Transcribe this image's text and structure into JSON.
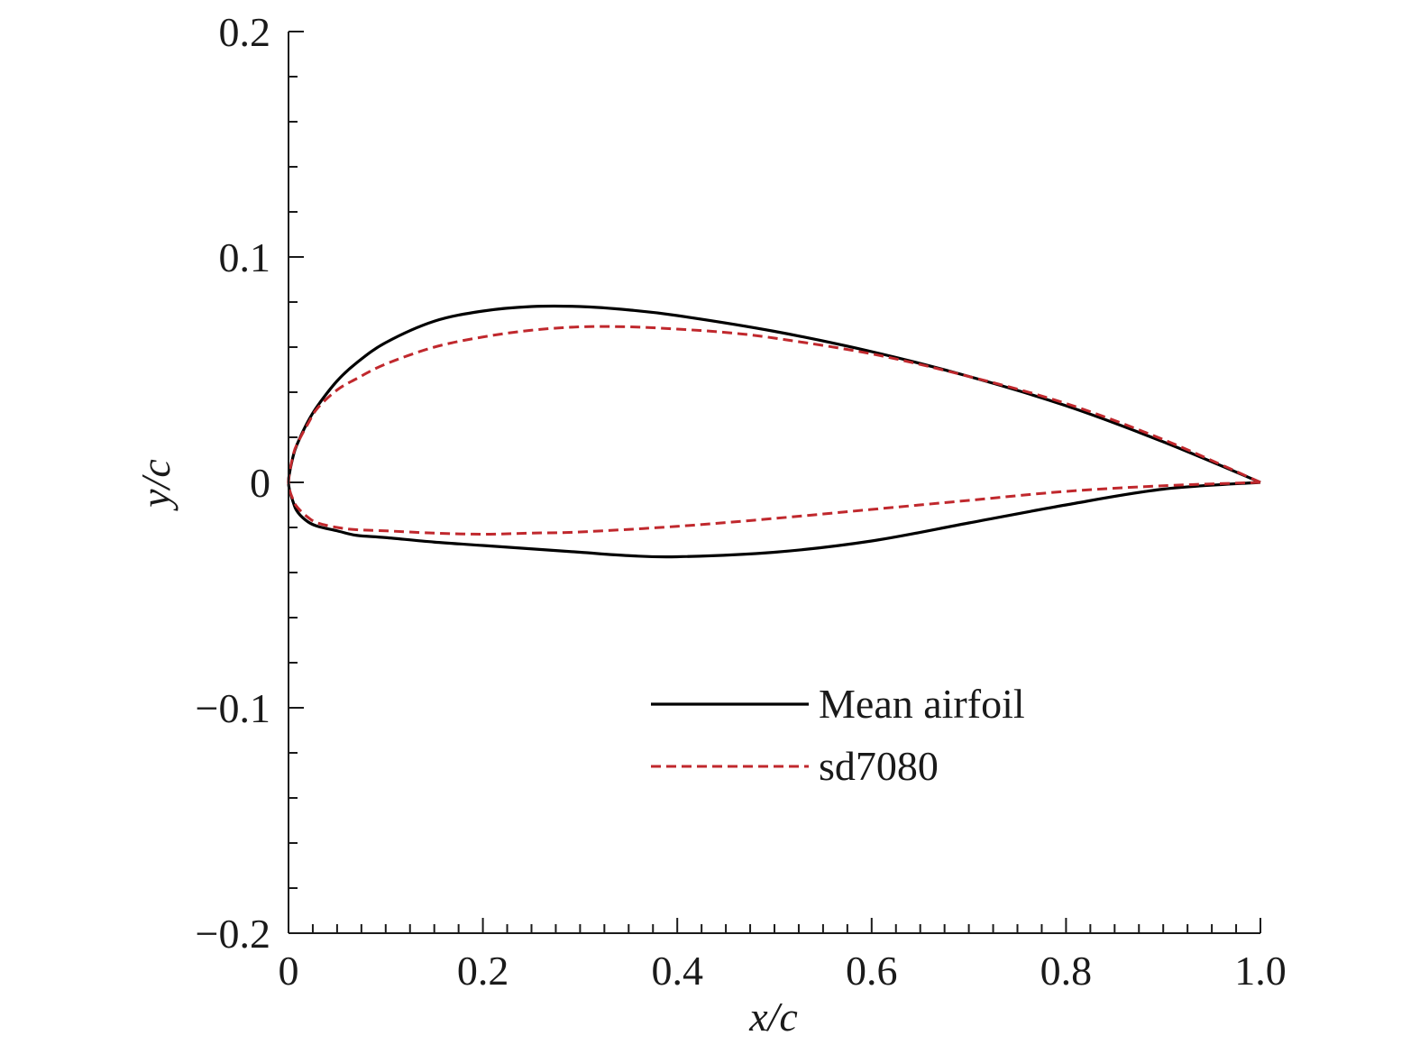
{
  "chart_data": {
    "type": "line",
    "title": "",
    "xlabel": "x/c",
    "ylabel": "y/c",
    "xlim": [
      0,
      1.0
    ],
    "ylim": [
      -0.2,
      0.2
    ],
    "grid": false,
    "legend_position": "lower-right",
    "x_ticks": [
      {
        "value": 0,
        "label": "0"
      },
      {
        "value": 0.2,
        "label": "0.2"
      },
      {
        "value": 0.4,
        "label": "0.4"
      },
      {
        "value": 0.6,
        "label": "0.6"
      },
      {
        "value": 0.8,
        "label": "0.8"
      },
      {
        "value": 1.0,
        "label": "1.0"
      }
    ],
    "y_ticks": [
      {
        "value": 0.2,
        "label": "0.2"
      },
      {
        "value": 0.1,
        "label": "0.1"
      },
      {
        "value": 0,
        "label": "0"
      },
      {
        "value": -0.1,
        "label": "−0.1"
      },
      {
        "value": -0.2,
        "label": "−0.2"
      }
    ],
    "series": [
      {
        "name": "Mean airfoil",
        "color": "#000000",
        "style": "solid",
        "x": [
          1.0,
          0.9,
          0.8,
          0.7,
          0.6,
          0.5,
          0.4,
          0.35,
          0.3,
          0.25,
          0.2,
          0.15,
          0.1,
          0.07,
          0.05,
          0.03,
          0.02,
          0.01,
          0.005,
          0,
          0.005,
          0.01,
          0.02,
          0.03,
          0.05,
          0.07,
          0.1,
          0.15,
          0.2,
          0.25,
          0.3,
          0.35,
          0.4,
          0.5,
          0.6,
          0.7,
          0.8,
          0.9,
          1.0
        ],
        "y": [
          0,
          0.018,
          0.034,
          0.047,
          0.058,
          0.067,
          0.074,
          0.0765,
          0.078,
          0.078,
          0.076,
          0.0715,
          0.062,
          0.053,
          0.045,
          0.034,
          0.027,
          0.018,
          0.012,
          0,
          -0.009,
          -0.0135,
          -0.0175,
          -0.0195,
          -0.0215,
          -0.0235,
          -0.0245,
          -0.0265,
          -0.028,
          -0.0295,
          -0.031,
          -0.0325,
          -0.033,
          -0.031,
          -0.026,
          -0.018,
          -0.01,
          -0.003,
          0
        ]
      },
      {
        "name": "sd7080",
        "color": "#c0282d",
        "style": "dashed",
        "x": [
          1.0,
          0.9,
          0.8,
          0.7,
          0.6,
          0.5,
          0.45,
          0.4,
          0.35,
          0.3,
          0.25,
          0.2,
          0.15,
          0.1,
          0.07,
          0.05,
          0.03,
          0.02,
          0.01,
          0.005,
          0,
          0.005,
          0.01,
          0.02,
          0.03,
          0.05,
          0.07,
          0.1,
          0.15,
          0.2,
          0.25,
          0.3,
          0.4,
          0.5,
          0.6,
          0.7,
          0.8,
          0.9,
          1.0
        ],
        "y": [
          0,
          0.019,
          0.035,
          0.047,
          0.057,
          0.064,
          0.0665,
          0.068,
          0.069,
          0.069,
          0.0675,
          0.0645,
          0.06,
          0.0525,
          0.046,
          0.041,
          0.033,
          0.026,
          0.018,
          0.0125,
          0,
          -0.008,
          -0.0115,
          -0.0155,
          -0.018,
          -0.02,
          -0.021,
          -0.0215,
          -0.0225,
          -0.023,
          -0.0225,
          -0.022,
          -0.0195,
          -0.016,
          -0.012,
          -0.008,
          -0.004,
          -0.0015,
          0
        ]
      }
    ]
  }
}
